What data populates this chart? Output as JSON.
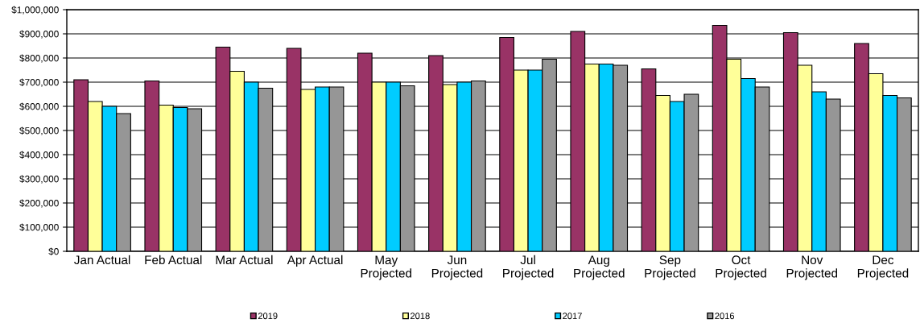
{
  "chart_data": {
    "type": "bar",
    "categories": [
      "Jan Actual",
      "Feb Actual",
      "Mar Actual",
      "Apr Actual",
      "May\nProjected",
      "Jun\nProjected",
      "Jul\nProjected",
      "Aug\nProjected",
      "Sep\nProjected",
      "Oct\nProjected",
      "Nov\nProjected",
      "Dec\nProjected"
    ],
    "series": [
      {
        "name": "2019",
        "color": "#993366",
        "values": [
          710000,
          705000,
          845000,
          840000,
          820000,
          810000,
          885000,
          910000,
          755000,
          935000,
          905000,
          860000
        ]
      },
      {
        "name": "2018",
        "color": "#ffff99",
        "values": [
          620000,
          605000,
          745000,
          670000,
          700000,
          690000,
          750000,
          775000,
          645000,
          795000,
          770000,
          735000
        ]
      },
      {
        "name": "2017",
        "color": "#00ccff",
        "values": [
          600000,
          595000,
          700000,
          680000,
          700000,
          700000,
          750000,
          775000,
          620000,
          715000,
          660000,
          645000
        ]
      },
      {
        "name": "2016",
        "color": "#969696",
        "values": [
          570000,
          590000,
          675000,
          680000,
          685000,
          705000,
          795000,
          770000,
          650000,
          680000,
          630000,
          635000
        ]
      }
    ],
    "ylim": [
      0,
      1000000
    ],
    "yticks": [
      {
        "value": 0,
        "label": "$0"
      },
      {
        "value": 100000,
        "label": "$100,000"
      },
      {
        "value": 200000,
        "label": "$200,000"
      },
      {
        "value": 300000,
        "label": "$300,000"
      },
      {
        "value": 400000,
        "label": "$400,000"
      },
      {
        "value": 500000,
        "label": "$500,000"
      },
      {
        "value": 600000,
        "label": "$600,000"
      },
      {
        "value": 700000,
        "label": "$700,000"
      },
      {
        "value": 800000,
        "label": "$800,000"
      },
      {
        "value": 900000,
        "label": "$900,000"
      },
      {
        "value": 1000000,
        "label": "$1,000,000"
      }
    ],
    "grid": "y",
    "legend": "bottom"
  }
}
